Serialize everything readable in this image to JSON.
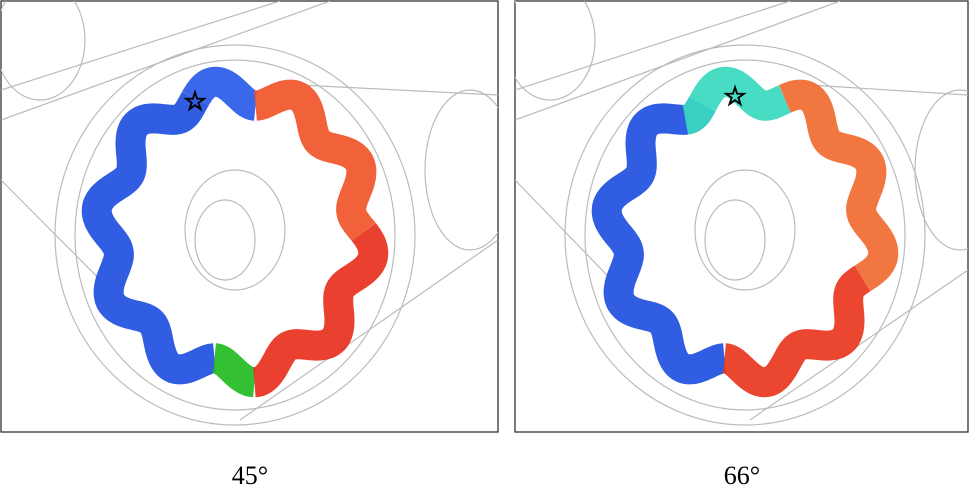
{
  "panels": [
    {
      "caption": "45°"
    },
    {
      "caption": "66°"
    }
  ]
}
